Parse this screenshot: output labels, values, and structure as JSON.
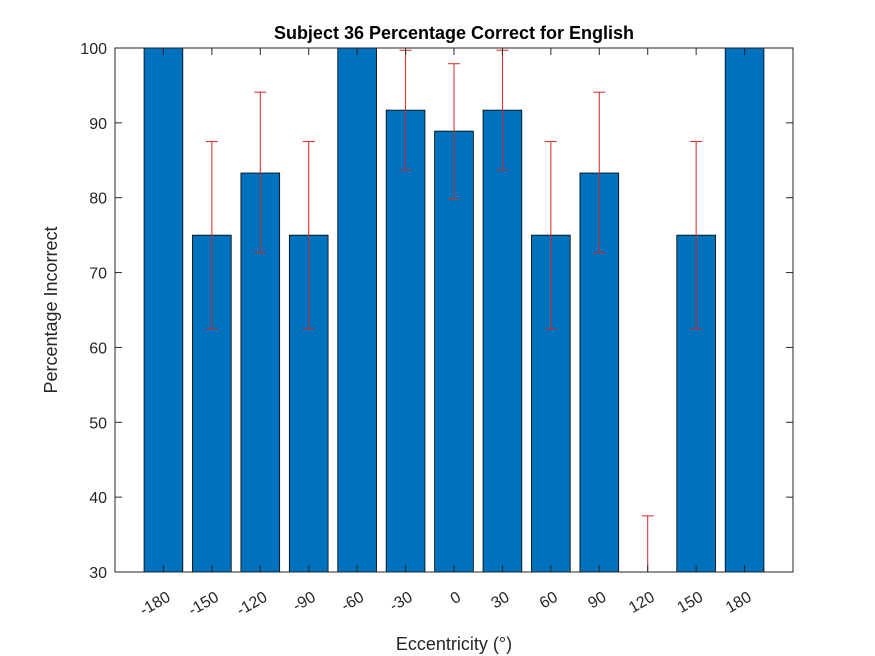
{
  "chart_data": {
    "type": "bar",
    "title": "Subject 36 Percentage Correct for English",
    "xlabel": "Eccentricity (°)",
    "ylabel": "Percentage Incorrect",
    "categories": [
      "-180",
      "-150",
      "-120",
      "-90",
      "-60",
      "-30",
      "0",
      "30",
      "60",
      "90",
      "120",
      "150",
      "180"
    ],
    "values": [
      100,
      75,
      83.3,
      75,
      100,
      91.7,
      88.9,
      91.7,
      75,
      83.3,
      25,
      75,
      100
    ],
    "error_bars": {
      "lower": [
        null,
        62.5,
        72.7,
        62.5,
        null,
        83.7,
        79.9,
        83.7,
        62.5,
        72.7,
        null,
        62.5,
        null
      ],
      "upper": [
        null,
        87.5,
        94.1,
        87.5,
        null,
        99.7,
        97.9,
        99.7,
        87.5,
        94.1,
        37.5,
        87.5,
        null
      ]
    },
    "ylim": [
      30,
      100
    ],
    "yticks": [
      "30",
      "40",
      "50",
      "60",
      "70",
      "80",
      "90",
      "100"
    ],
    "grid": false,
    "colors": {
      "bar": "#0072BD",
      "bar_edge": "#000000",
      "error_bar": "#D62728",
      "axis": "#262626"
    }
  }
}
